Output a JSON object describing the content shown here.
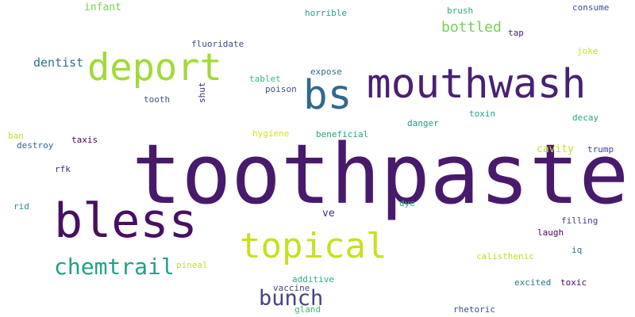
{
  "words": [
    {
      "text": "toothpaste",
      "color": "#481a6c"
    },
    {
      "text": "bless",
      "color": "#471063"
    },
    {
      "text": "mouthwash",
      "color": "#482173"
    },
    {
      "text": "deport",
      "color": "#a2da37"
    },
    {
      "text": "bs",
      "color": "#31688e"
    },
    {
      "text": "topical",
      "color": "#c8e020"
    },
    {
      "text": "chemtrail",
      "color": "#1fa287"
    },
    {
      "text": "bunch",
      "color": "#414487"
    },
    {
      "text": "bottled",
      "color": "#75d054"
    },
    {
      "text": "dentist",
      "color": "#2c728e"
    },
    {
      "text": "infant",
      "color": "#7ad151"
    },
    {
      "text": "horrible",
      "color": "#20a386"
    },
    {
      "text": "brush",
      "color": "#25ab82"
    },
    {
      "text": "consume",
      "color": "#3b528b"
    },
    {
      "text": "tap",
      "color": "#482173"
    },
    {
      "text": "fluoridate",
      "color": "#3e4989"
    },
    {
      "text": "joke",
      "color": "#c2df23"
    },
    {
      "text": "expose",
      "color": "#2d708e"
    },
    {
      "text": "tablet",
      "color": "#35b779"
    },
    {
      "text": "poison",
      "color": "#3b528b"
    },
    {
      "text": "tooth",
      "color": "#3a548c"
    },
    {
      "text": "shut",
      "color": "#472d7b"
    },
    {
      "text": "toxin",
      "color": "#1fa187"
    },
    {
      "text": "decay",
      "color": "#22a785"
    },
    {
      "text": "danger",
      "color": "#1f9a8a"
    },
    {
      "text": "hygiene",
      "color": "#d8e219"
    },
    {
      "text": "beneficial",
      "color": "#22a884"
    },
    {
      "text": "ban",
      "color": "#c0df25"
    },
    {
      "text": "taxis",
      "color": "#440154"
    },
    {
      "text": "destroy",
      "color": "#31688e"
    },
    {
      "text": "cavity",
      "color": "#c8e020"
    },
    {
      "text": "trump",
      "color": "#424186"
    },
    {
      "text": "rfk",
      "color": "#482878"
    },
    {
      "text": "rid",
      "color": "#21918c"
    },
    {
      "text": "dye",
      "color": "#2ab07f"
    },
    {
      "text": "ve",
      "color": "#472c7a"
    },
    {
      "text": "filling",
      "color": "#3f4788"
    },
    {
      "text": "laugh",
      "color": "#440154"
    },
    {
      "text": "iq",
      "color": "#2a788e"
    },
    {
      "text": "calisthenic",
      "color": "#c0df25"
    },
    {
      "text": "pineal",
      "color": "#c8e020"
    },
    {
      "text": "additive",
      "color": "#29af7f"
    },
    {
      "text": "excited",
      "color": "#2c728e"
    },
    {
      "text": "toxic",
      "color": "#460b5e"
    },
    {
      "text": "vaccine",
      "color": "#3f4788"
    },
    {
      "text": "gland",
      "color": "#3bbb75"
    },
    {
      "text": "rhetoric",
      "color": "#3b528b"
    }
  ]
}
